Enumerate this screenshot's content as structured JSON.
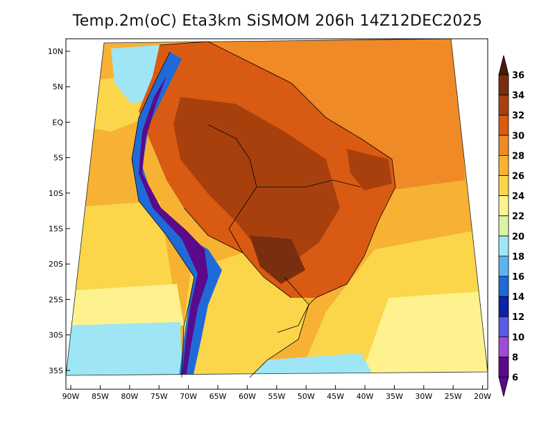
{
  "title": "Temp.2m(oC) Eta3km SiSMOM 206h 14Z12DEC2025",
  "axes": {
    "lat_labels": [
      "10N",
      "5N",
      "EQ",
      "5S",
      "10S",
      "15S",
      "20S",
      "25S",
      "30S",
      "35S"
    ],
    "lon_labels": [
      "90W",
      "85W",
      "80W",
      "75W",
      "70W",
      "65W",
      "60W",
      "55W",
      "50W",
      "45W",
      "40W",
      "35W",
      "30W",
      "25W",
      "20W"
    ]
  },
  "colorbar": {
    "labels": [
      "36",
      "34",
      "32",
      "30",
      "28",
      "26",
      "24",
      "22",
      "20",
      "18",
      "16",
      "14",
      "12",
      "10",
      "8",
      "6"
    ],
    "colors": [
      "#4a1a0a",
      "#7a2e10",
      "#a8400e",
      "#d95a12",
      "#f08a26",
      "#f7b233",
      "#fbd64b",
      "#fdf28e",
      "#d9f5a0",
      "#9ee6f5",
      "#5fb2f2",
      "#1f6ad8",
      "#0c22a8",
      "#5a5ae6",
      "#a24ad4",
      "#5a0a8a"
    ]
  },
  "map_colors": {
    "ocean_warm": "#f7b233",
    "ocean_warmer": "#f08a26",
    "ocean_mild": "#fbd64b",
    "ocean_cool": "#fdf28e",
    "ocean_cold": "#9ee6f5",
    "land_hot": "#d95a12",
    "land_very_hot": "#a8400e",
    "land_extreme": "#7a2e10",
    "andes_cold": "#1f6ad8",
    "andes_very_cold": "#5a0a8a",
    "south_mild": "#fbd64b"
  }
}
